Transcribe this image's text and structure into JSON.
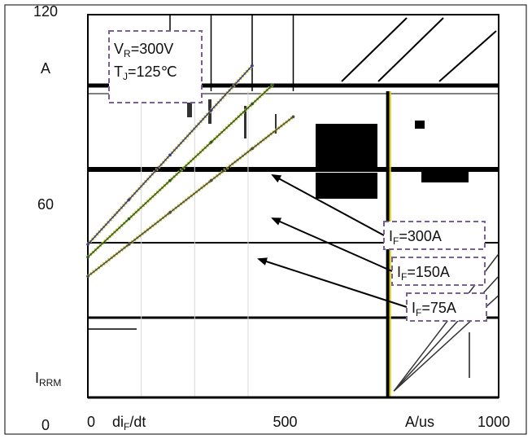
{
  "chart_data": {
    "type": "line",
    "title": "",
    "xlabel": "diF/dt",
    "xlabel_main": "di",
    "xlabel_sub": "F",
    "xlabel_tail": "/dt",
    "xunit": "A/us",
    "ylabel_main": "I",
    "ylabel_sub": "RRM",
    "yunit": "A",
    "xlim": [
      0,
      1000
    ],
    "ylim": [
      0,
      120
    ],
    "xticks": [
      "0",
      "500",
      "1000"
    ],
    "yticks": [
      "0",
      "60",
      "120"
    ],
    "conditions": {
      "vr_main": "V",
      "vr_sub": "R",
      "vr_value": "=300V",
      "tj_main": "T",
      "tj_sub": "J",
      "tj_value": "=125℃"
    },
    "series": [
      {
        "name": "IF=300A",
        "label_main": "I",
        "label_sub": "F",
        "label_value": "=300A",
        "x": [
          0,
          100,
          200,
          300,
          400
        ],
        "y": [
          48,
          62,
          76,
          90,
          104
        ]
      },
      {
        "name": "IF=150A",
        "label_main": "I",
        "label_sub": "F",
        "label_value": "=150A",
        "x": [
          0,
          100,
          200,
          300,
          400,
          450
        ],
        "y": [
          44,
          56,
          68,
          80,
          92,
          98
        ]
      },
      {
        "name": "IF=75A",
        "label_main": "I",
        "label_sub": "F",
        "label_value": "=75A",
        "x": [
          0,
          100,
          200,
          300,
          400,
          500
        ],
        "y": [
          38,
          48,
          58,
          68,
          78,
          88
        ]
      }
    ],
    "grid": true,
    "legend": "right-callouts"
  }
}
